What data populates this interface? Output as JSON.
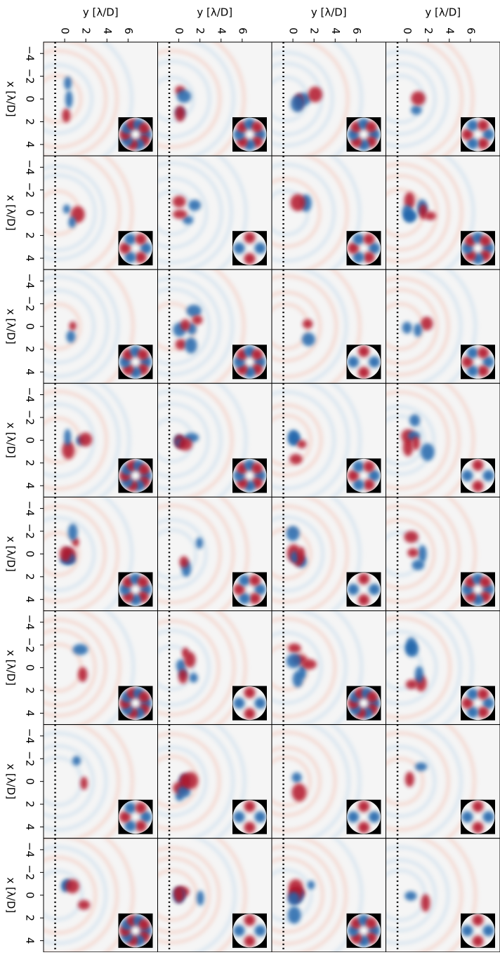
{
  "chart_data": {
    "type": "heatmap-grid",
    "rows": 8,
    "cols": 4,
    "xlabel": "y [λ/D]",
    "ylabel": "x [λ/D]",
    "xlim": [
      -2,
      8.8
    ],
    "xticks": [
      0,
      2,
      4,
      6
    ],
    "ylim": [
      -5,
      5
    ],
    "yticks": [
      {
        "value": -4,
        "label": "−4"
      },
      {
        "value": -2,
        "label": "−2"
      },
      0,
      2,
      4
    ],
    "vline": -0.9
  }
}
